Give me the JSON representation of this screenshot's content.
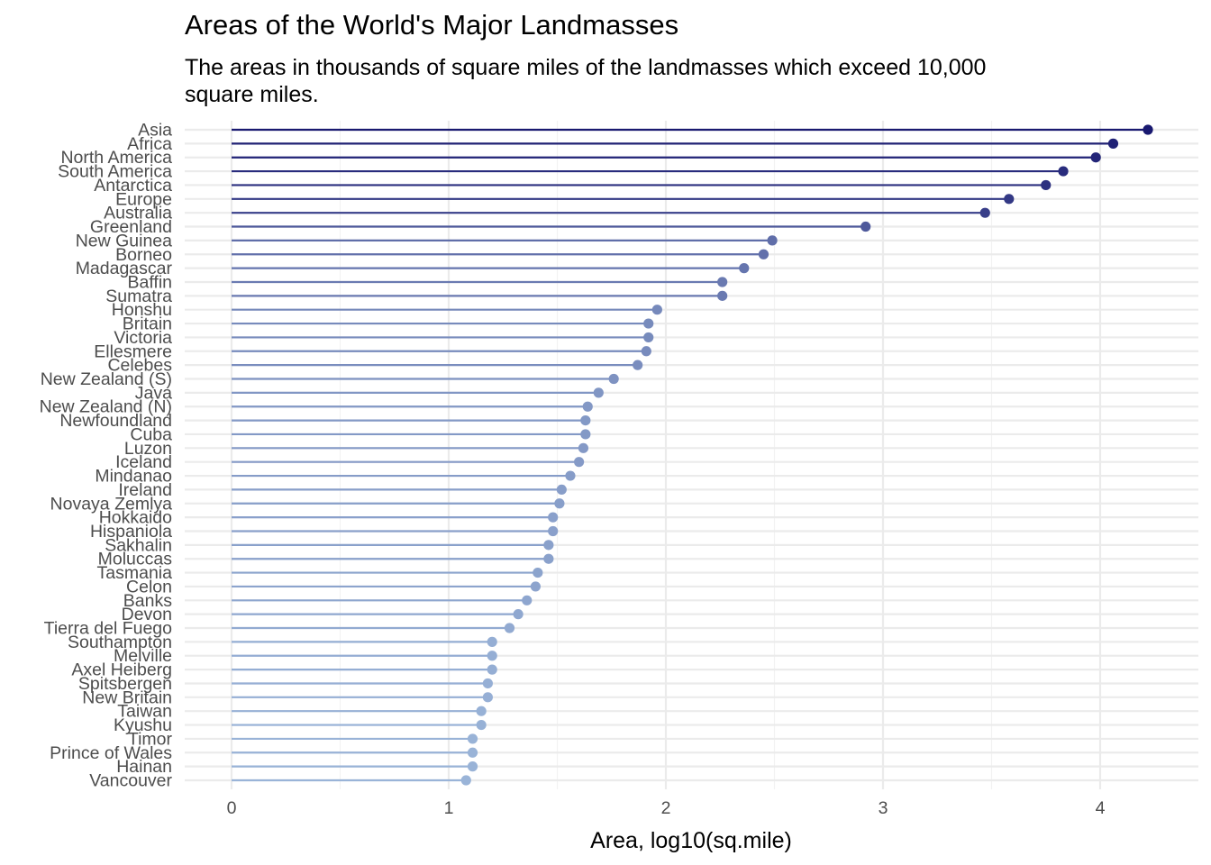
{
  "chart_data": {
    "type": "lollipop",
    "title": "Areas of the World's Major Landmasses",
    "subtitle": "The areas in thousands of square miles of the landmasses which exceed 10,000 square miles.",
    "xlabel": "Area, log10(sq.mile)",
    "ylabel": "",
    "xlim": [
      -0.2,
      4.45
    ],
    "x_ticks": [
      0,
      1,
      2,
      3,
      4
    ],
    "grid": true,
    "legend": "none",
    "color_low": "#9ab4d8",
    "color_high": "#191970",
    "categories": [
      "Asia",
      "Africa",
      "North America",
      "South America",
      "Antarctica",
      "Europe",
      "Australia",
      "Greenland",
      "New Guinea",
      "Borneo",
      "Madagascar",
      "Baffin",
      "Sumatra",
      "Honshu",
      "Britain",
      "Victoria",
      "Ellesmere",
      "Celebes",
      "New Zealand (S)",
      "Java",
      "New Zealand (N)",
      "Newfoundland",
      "Cuba",
      "Luzon",
      "Iceland",
      "Mindanao",
      "Ireland",
      "Novaya Zemlya",
      "Hokkaido",
      "Hispaniola",
      "Sakhalin",
      "Moluccas",
      "Tasmania",
      "Celon",
      "Banks",
      "Devon",
      "Tierra del Fuego",
      "Southampton",
      "Melville",
      "Axel Heiberg",
      "Spitsbergen",
      "New Britain",
      "Taiwan",
      "Kyushu",
      "Timor",
      "Prince of Wales",
      "Hainan",
      "Vancouver"
    ],
    "values": [
      4.22,
      4.06,
      3.98,
      3.83,
      3.75,
      3.58,
      3.47,
      2.92,
      2.49,
      2.45,
      2.36,
      2.26,
      2.26,
      1.96,
      1.92,
      1.92,
      1.91,
      1.87,
      1.76,
      1.69,
      1.64,
      1.63,
      1.63,
      1.62,
      1.6,
      1.56,
      1.52,
      1.51,
      1.48,
      1.48,
      1.46,
      1.46,
      1.41,
      1.4,
      1.36,
      1.32,
      1.28,
      1.2,
      1.2,
      1.2,
      1.18,
      1.18,
      1.15,
      1.15,
      1.11,
      1.11,
      1.11,
      1.08
    ]
  }
}
